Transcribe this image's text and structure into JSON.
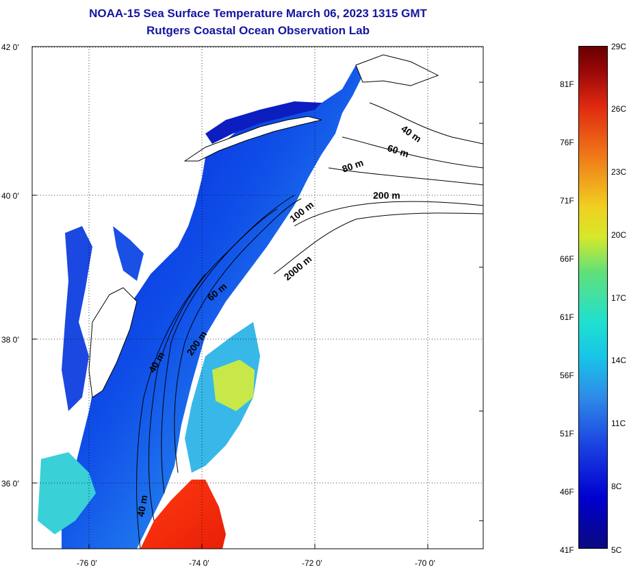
{
  "title_line1": "NOAA-15 Sea Surface Temperature March 06, 2023 1315 GMT",
  "title_line2": "Rutgers Coastal Ocean Observation Lab",
  "lat_labels": [
    "42 0'",
    "40 0'",
    "38 0'",
    "36 0'"
  ],
  "lon_labels": [
    "-76 0'",
    "-74 0'",
    "-72 0'",
    "-70 0'"
  ],
  "contour_labels": [
    "40 m",
    "60 m",
    "80 m",
    "200 m",
    "100 m",
    "2000 m",
    "60 m",
    "200 m",
    "40 m",
    "40 m"
  ],
  "colorbar": {
    "fahrenheit": [
      "81F",
      "76F",
      "71F",
      "66F",
      "61F",
      "56F",
      "51F",
      "46F",
      "41F"
    ],
    "celsius": [
      "29C",
      "26C",
      "23C",
      "20C",
      "17C",
      "14C",
      "11C",
      "8C",
      "5C"
    ]
  },
  "colors": {
    "title": "#1515a0",
    "sst_cold": "#0a0a80",
    "sst_warm": "#e02a10"
  }
}
